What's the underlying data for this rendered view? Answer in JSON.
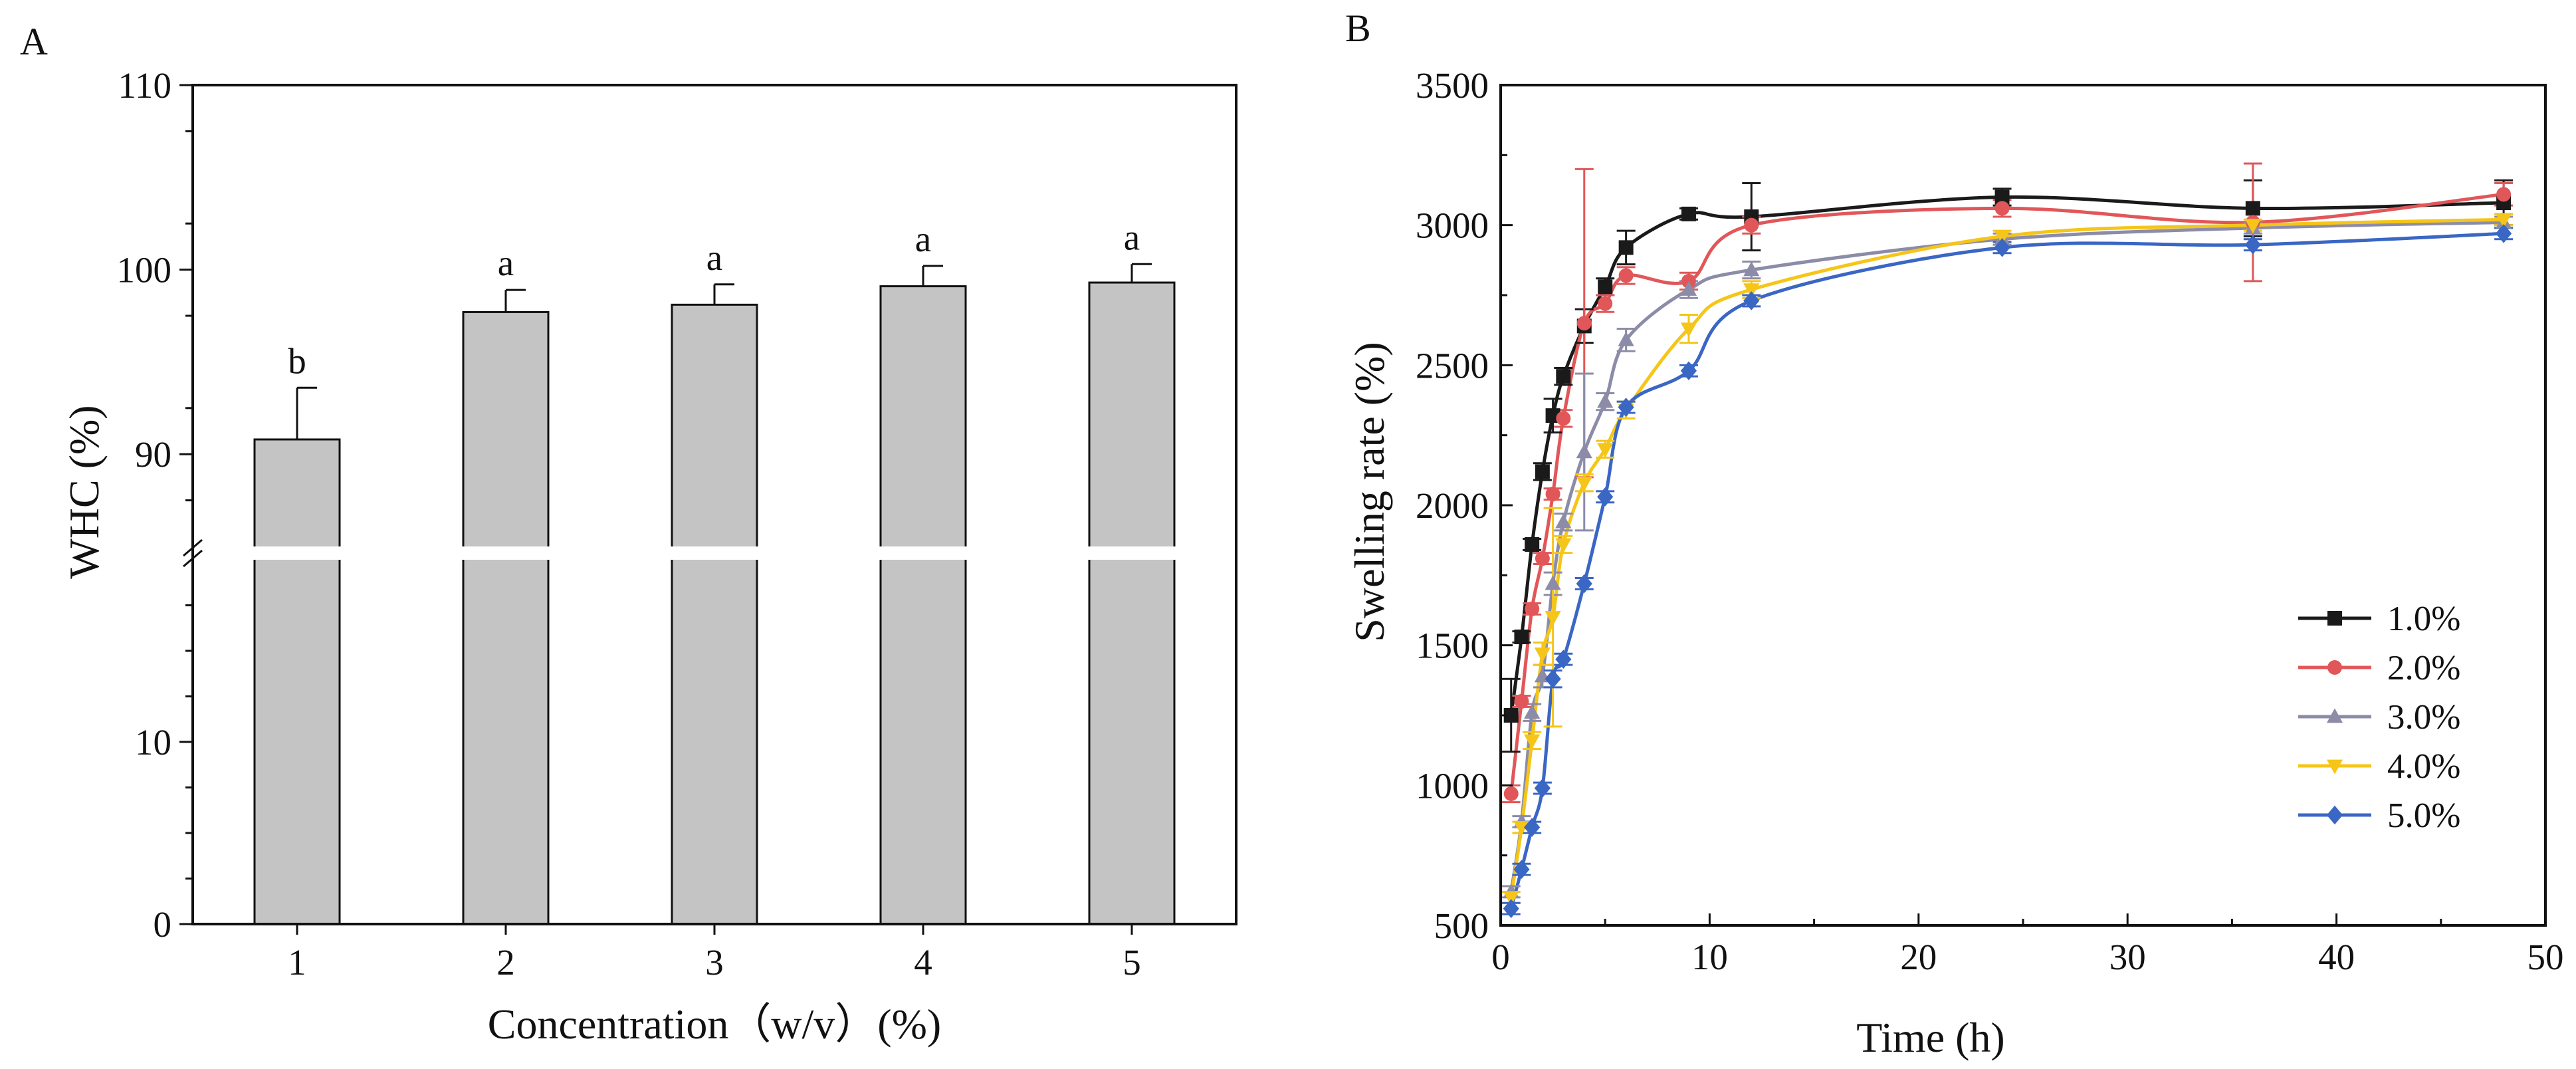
{
  "chart_data": [
    {
      "panel": "A",
      "type": "bar",
      "xlabel": "Concentration（w/v）(%)",
      "ylabel": "WHC (%)",
      "categories": [
        "1",
        "2",
        "3",
        "4",
        "5"
      ],
      "values": [
        90.8,
        97.7,
        98.1,
        99.1,
        99.3
      ],
      "errors": [
        2.8,
        1.2,
        1.1,
        1.1,
        1.0
      ],
      "significance": [
        "b",
        "a",
        "a",
        "a",
        "a"
      ],
      "axis_break": true,
      "y_lower_range": [
        0,
        20
      ],
      "y_upper_range": [
        85,
        110
      ],
      "y_lower_ticks": [
        "0",
        "10"
      ],
      "y_upper_ticks": [
        "90",
        "100",
        "110"
      ],
      "bar_color": "#c4c4c4"
    },
    {
      "panel": "B",
      "type": "line",
      "xlabel": "Time (h)",
      "ylabel": "Swelling rate (%)",
      "xlim": [
        0,
        50
      ],
      "ylim": [
        500,
        3500
      ],
      "xticks": [
        "0",
        "10",
        "20",
        "30",
        "40",
        "50"
      ],
      "yticks": [
        "500",
        "1000",
        "1500",
        "2000",
        "2500",
        "3000",
        "3500"
      ],
      "legend_position": "right-middle",
      "series": [
        {
          "name": "1.0%",
          "color": "#1a1a1a",
          "marker": "square",
          "x": [
            0.5,
            1,
            1.5,
            2,
            2.5,
            3,
            4,
            5,
            6,
            9,
            12,
            24,
            36,
            48
          ],
          "y": [
            1250,
            1530,
            1860,
            2120,
            2320,
            2460,
            2640,
            2780,
            2920,
            3040,
            3030,
            3100,
            3060,
            3080
          ],
          "err": [
            130,
            20,
            20,
            30,
            60,
            30,
            60,
            30,
            60,
            20,
            120,
            30,
            100,
            80
          ]
        },
        {
          "name": "2.0%",
          "color": "#e15759",
          "marker": "circle",
          "x": [
            0.5,
            1,
            1.5,
            2,
            2.5,
            3,
            4,
            5,
            6,
            9,
            12,
            24,
            36,
            48
          ],
          "y": [
            970,
            1300,
            1630,
            1810,
            2040,
            2310,
            2650,
            2720,
            2820,
            2800,
            3000,
            3060,
            3010,
            3110
          ],
          "err": [
            30,
            20,
            20,
            20,
            20,
            30,
            550,
            30,
            30,
            30,
            30,
            30,
            210,
            40
          ]
        },
        {
          "name": "3.0%",
          "color": "#8c8ca8",
          "marker": "triangle",
          "x": [
            0.5,
            1,
            1.5,
            2,
            2.5,
            3,
            4,
            5,
            6,
            9,
            12,
            24,
            36,
            48
          ],
          "y": [
            620,
            870,
            1260,
            1390,
            1720,
            1940,
            2190,
            2370,
            2590,
            2770,
            2840,
            2950,
            2990,
            3010
          ],
          "err": [
            20,
            20,
            30,
            40,
            40,
            30,
            280,
            30,
            40,
            30,
            30,
            20,
            20,
            20
          ]
        },
        {
          "name": "4.0%",
          "color": "#f5c518",
          "marker": "triangle-down",
          "x": [
            0.5,
            1,
            1.5,
            2,
            2.5,
            3,
            4,
            5,
            6,
            9,
            12,
            24,
            36,
            48
          ],
          "y": [
            600,
            850,
            1160,
            1470,
            1600,
            1860,
            2080,
            2200,
            2340,
            2630,
            2770,
            2960,
            3000,
            3020
          ],
          "err": [
            20,
            20,
            30,
            40,
            390,
            30,
            30,
            30,
            30,
            50,
            30,
            20,
            20,
            20
          ]
        },
        {
          "name": "5.0%",
          "color": "#3a66c4",
          "marker": "diamond",
          "x": [
            0.5,
            1,
            1.5,
            2,
            2.5,
            3,
            4,
            5,
            6,
            9,
            12,
            24,
            36,
            48
          ],
          "y": [
            560,
            700,
            850,
            990,
            1380,
            1450,
            1720,
            2030,
            2350,
            2480,
            2730,
            2920,
            2930,
            2970
          ],
          "err": [
            20,
            20,
            20,
            20,
            30,
            20,
            20,
            20,
            20,
            20,
            20,
            20,
            20,
            20
          ]
        }
      ]
    }
  ]
}
